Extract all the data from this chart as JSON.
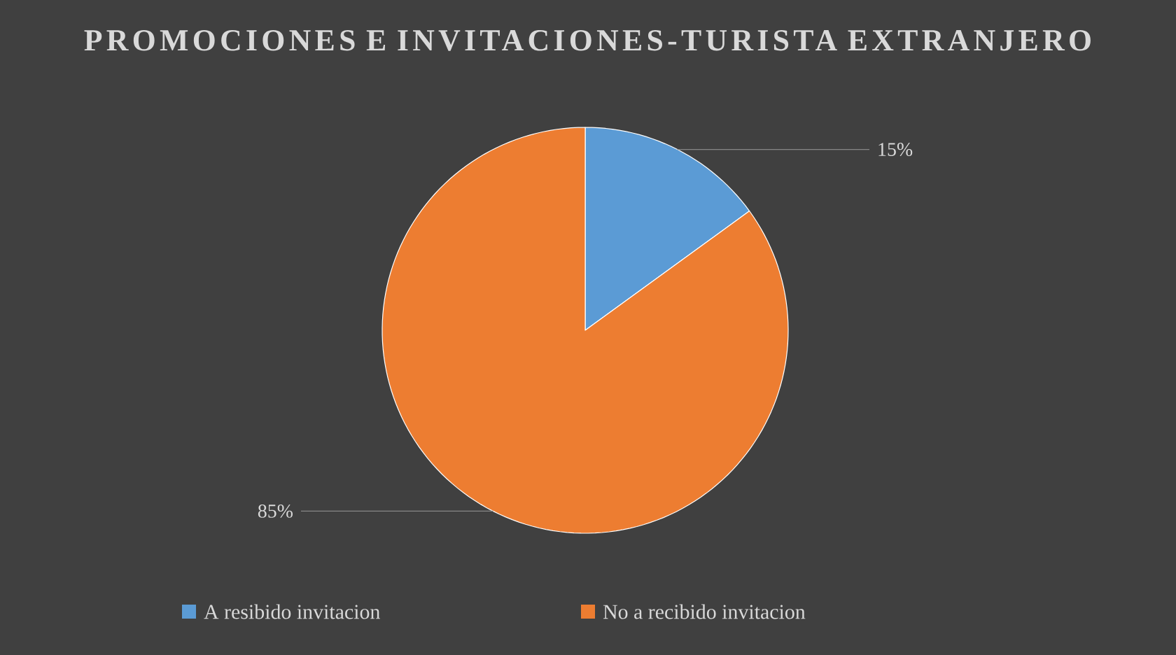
{
  "chart_data": {
    "type": "pie",
    "title": "PROMOCIONES E INVITACIONES-TURISTA EXTRANJERO",
    "categories": [
      "A resibido invitacion",
      "No a recibido invitacion"
    ],
    "values": [
      15,
      85
    ],
    "colors": [
      "#5b9bd5",
      "#ed7d31"
    ],
    "value_labels": [
      "15%",
      "85%"
    ],
    "legend": "bottom"
  }
}
